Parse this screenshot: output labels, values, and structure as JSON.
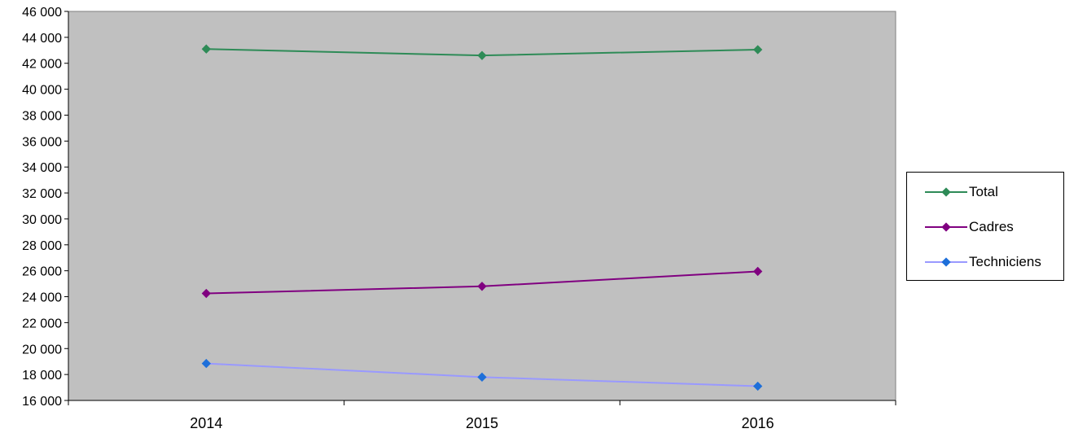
{
  "chart_data": {
    "type": "line",
    "title": "",
    "xlabel": "",
    "ylabel": "",
    "categories": [
      "2014",
      "2015",
      "2016"
    ],
    "ylim": [
      16000,
      46000
    ],
    "ytick_step": 2000,
    "ytick_labels": [
      "16 000",
      "18 000",
      "20 000",
      "22 000",
      "24 000",
      "26 000",
      "28 000",
      "30 000",
      "32 000",
      "34 000",
      "36 000",
      "38 000",
      "40 000",
      "42 000",
      "44 000",
      "46 000"
    ],
    "grid": false,
    "plot_background": "#c0c0c0",
    "legend_position": "right",
    "series": [
      {
        "name": "Total",
        "color": "#2e8b57",
        "values": [
          43100,
          42600,
          43050
        ]
      },
      {
        "name": "Cadres",
        "color": "#800080",
        "values": [
          24250,
          24800,
          25950
        ]
      },
      {
        "name": "Techniciens",
        "color": "#9999ff",
        "marker_color": "#1e6fd9",
        "values": [
          18850,
          17800,
          17100
        ]
      }
    ]
  }
}
